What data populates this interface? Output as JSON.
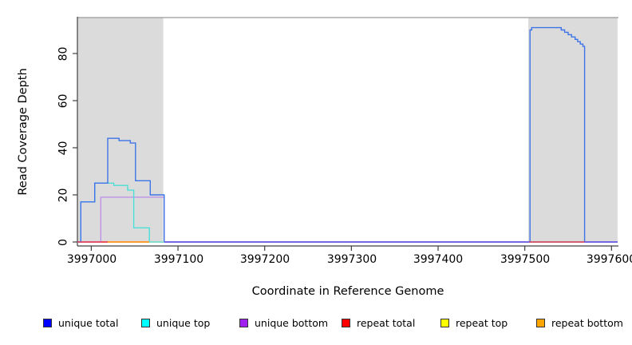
{
  "chart_data": {
    "type": "line",
    "title": "",
    "xlabel": "Coordinate in Reference Genome",
    "ylabel": "Read Coverage Depth",
    "xlim": [
      3996984,
      3997608
    ],
    "ylim": [
      0,
      95
    ],
    "grid": false,
    "legend_position": "bottom",
    "x_ticks": [
      3997000,
      3997100,
      3997200,
      3997300,
      3997400,
      3997500,
      3997600
    ],
    "x_tick_labels": [
      "3997000",
      "3997100",
      "3997200",
      "3997300",
      "3997400",
      "3997500",
      "3997600"
    ],
    "y_ticks": [
      0,
      20,
      40,
      60,
      80
    ],
    "y_tick_labels": [
      "0",
      "20",
      "40",
      "60",
      "80"
    ],
    "highlight_regions": [
      {
        "from": 3996984,
        "to": 3997083,
        "fill": "#DBDBDB"
      },
      {
        "from": 3997504,
        "to": 3997607,
        "fill": "#DBDBDB"
      }
    ],
    "series": [
      {
        "name": "unique total",
        "legend_color": "#0000FF",
        "line_color": "#3D74E8",
        "steps": [
          [
            3996984,
            0
          ],
          [
            3996988,
            17
          ],
          [
            3997004,
            25
          ],
          [
            3997019,
            44
          ],
          [
            3997032,
            43
          ],
          [
            3997045,
            42
          ],
          [
            3997051,
            26
          ],
          [
            3997068,
            20
          ],
          [
            3997084,
            0
          ],
          [
            3997506,
            90
          ],
          [
            3997508,
            91
          ],
          [
            3997542,
            90
          ],
          [
            3997546,
            89
          ],
          [
            3997550,
            88
          ],
          [
            3997554,
            87
          ],
          [
            3997558,
            86
          ],
          [
            3997561,
            85
          ],
          [
            3997564,
            84
          ],
          [
            3997567,
            83
          ],
          [
            3997569,
            0
          ],
          [
            3997607,
            0
          ]
        ]
      },
      {
        "name": "unique top",
        "legend_color": "#00FFFF",
        "line_color": "#4ADFD8",
        "steps": [
          [
            3996984,
            0
          ],
          [
            3996988,
            17
          ],
          [
            3997004,
            25
          ],
          [
            3997026,
            24
          ],
          [
            3997042,
            22
          ],
          [
            3997049,
            6
          ],
          [
            3997067,
            0
          ],
          [
            3997607,
            0
          ]
        ]
      },
      {
        "name": "unique bottom",
        "legend_color": "#A020F0",
        "line_color": "#BD92E8",
        "steps": [
          [
            3996984,
            0
          ],
          [
            3997011,
            19
          ],
          [
            3997084,
            0
          ],
          [
            3997607,
            0
          ]
        ]
      },
      {
        "name": "repeat total",
        "legend_color": "#FF0000",
        "line_color": "#E8415C",
        "steps": [
          [
            3996984,
            0
          ],
          [
            3997607,
            0
          ]
        ]
      },
      {
        "name": "repeat top",
        "legend_color": "#FFFF00",
        "line_color": "#F5E626",
        "steps": [
          [
            3996984,
            0
          ],
          [
            3997607,
            0
          ]
        ]
      },
      {
        "name": "repeat bottom",
        "legend_color": "#FFA500",
        "line_color": "#FFA526",
        "steps": [
          [
            3996984,
            0
          ],
          [
            3997607,
            0
          ]
        ]
      }
    ],
    "baseline_segments": [
      {
        "from": 3996984,
        "to": 3997019,
        "color": "#E8415C"
      },
      {
        "from": 3997019,
        "to": 3997067,
        "color": "#FFA526"
      },
      {
        "from": 3997067,
        "to": 3997084,
        "color": "#7FE8DC"
      },
      {
        "from": 3997084,
        "to": 3997505,
        "color": "#7A5BE8"
      },
      {
        "from": 3997505,
        "to": 3997569,
        "color": "#E8415C"
      },
      {
        "from": 3997569,
        "to": 3997607,
        "color": "#7A5BE8"
      }
    ]
  }
}
